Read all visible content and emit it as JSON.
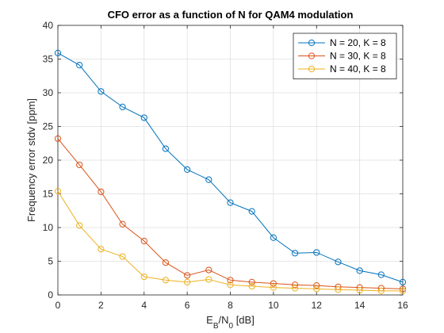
{
  "chart_data": {
    "type": "line",
    "title": "CFO error as a function of N for QAM4 modulation",
    "xlabel": "E_B/N_0 [dB]",
    "xlabel_parts": {
      "base1": "E",
      "sub1": "B",
      "mid": "/N",
      "sub2": "0",
      "unit": " [dB]"
    },
    "ylabel": "Frequency error stdv [ppm]",
    "xlim": [
      0,
      16
    ],
    "ylim": [
      0,
      40
    ],
    "xticks": [
      0,
      2,
      4,
      6,
      8,
      10,
      12,
      14,
      16
    ],
    "yticks": [
      0,
      5,
      10,
      15,
      20,
      25,
      30,
      35,
      40
    ],
    "grid": true,
    "legend_position": "top-right",
    "x": [
      0,
      1,
      2,
      3,
      4,
      5,
      6,
      7,
      8,
      9,
      10,
      11,
      12,
      13,
      14,
      15,
      16
    ],
    "series": [
      {
        "name": "N = 20, K = 8",
        "color": "#0072BD",
        "marker": "circle",
        "values": [
          35.9,
          34.1,
          30.2,
          27.9,
          26.3,
          21.7,
          18.6,
          17.1,
          13.7,
          12.4,
          8.5,
          6.2,
          6.3,
          4.9,
          3.6,
          3.0,
          1.9
        ]
      },
      {
        "name": "N = 30, K = 8",
        "color": "#D95319",
        "marker": "circle",
        "values": [
          23.2,
          19.3,
          15.3,
          10.5,
          8.0,
          4.8,
          2.9,
          3.7,
          2.2,
          1.9,
          1.7,
          1.5,
          1.4,
          1.2,
          1.1,
          1.0,
          0.9
        ]
      },
      {
        "name": "N = 40, K = 8",
        "color": "#EDB120",
        "marker": "circle",
        "values": [
          15.4,
          10.3,
          6.8,
          5.7,
          2.7,
          2.2,
          1.9,
          2.3,
          1.5,
          1.3,
          1.1,
          1.0,
          0.9,
          0.8,
          0.7,
          0.6,
          0.6
        ]
      }
    ]
  }
}
